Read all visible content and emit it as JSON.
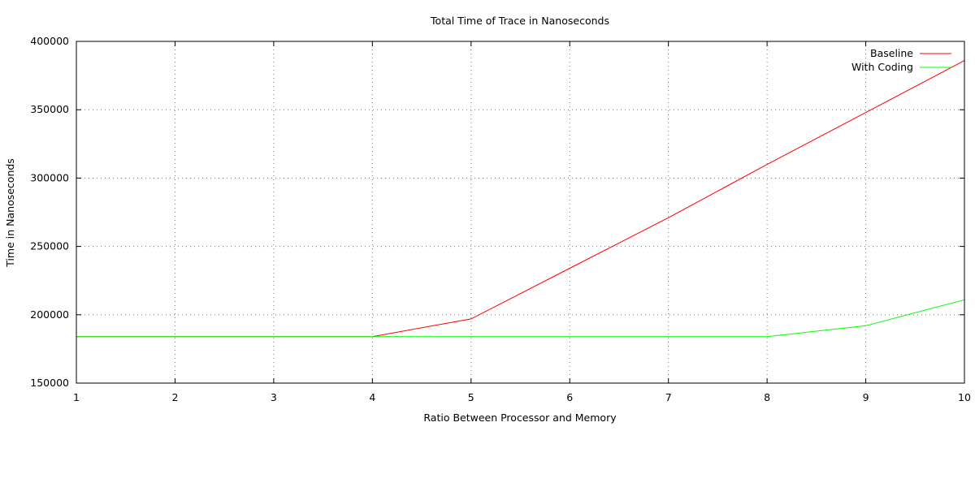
{
  "chart_data": {
    "type": "line",
    "title": "Total Time of Trace in Nanoseconds",
    "xlabel": "Ratio Between Processor and Memory",
    "ylabel": "Time in Nanoseconds",
    "xlim": [
      1,
      10
    ],
    "ylim": [
      150000,
      400000
    ],
    "x_ticks": [
      1,
      2,
      3,
      4,
      5,
      6,
      7,
      8,
      9,
      10
    ],
    "y_ticks": [
      150000,
      200000,
      250000,
      300000,
      350000,
      400000
    ],
    "grid": true,
    "legend_position": "top-right",
    "series": [
      {
        "name": "Baseline",
        "color": "#ff0000",
        "x": [
          1,
          2,
          3,
          4,
          5,
          6,
          7,
          8,
          9,
          10
        ],
        "y": [
          184000,
          184000,
          184000,
          184000,
          197000,
          234000,
          271000,
          310000,
          348000,
          386000
        ]
      },
      {
        "name": "With Coding",
        "color": "#00ff00",
        "x": [
          1,
          2,
          3,
          4,
          5,
          6,
          7,
          8,
          9,
          10
        ],
        "y": [
          184000,
          184000,
          184000,
          184000,
          184000,
          184000,
          184000,
          184000,
          192000,
          211000
        ]
      }
    ]
  }
}
